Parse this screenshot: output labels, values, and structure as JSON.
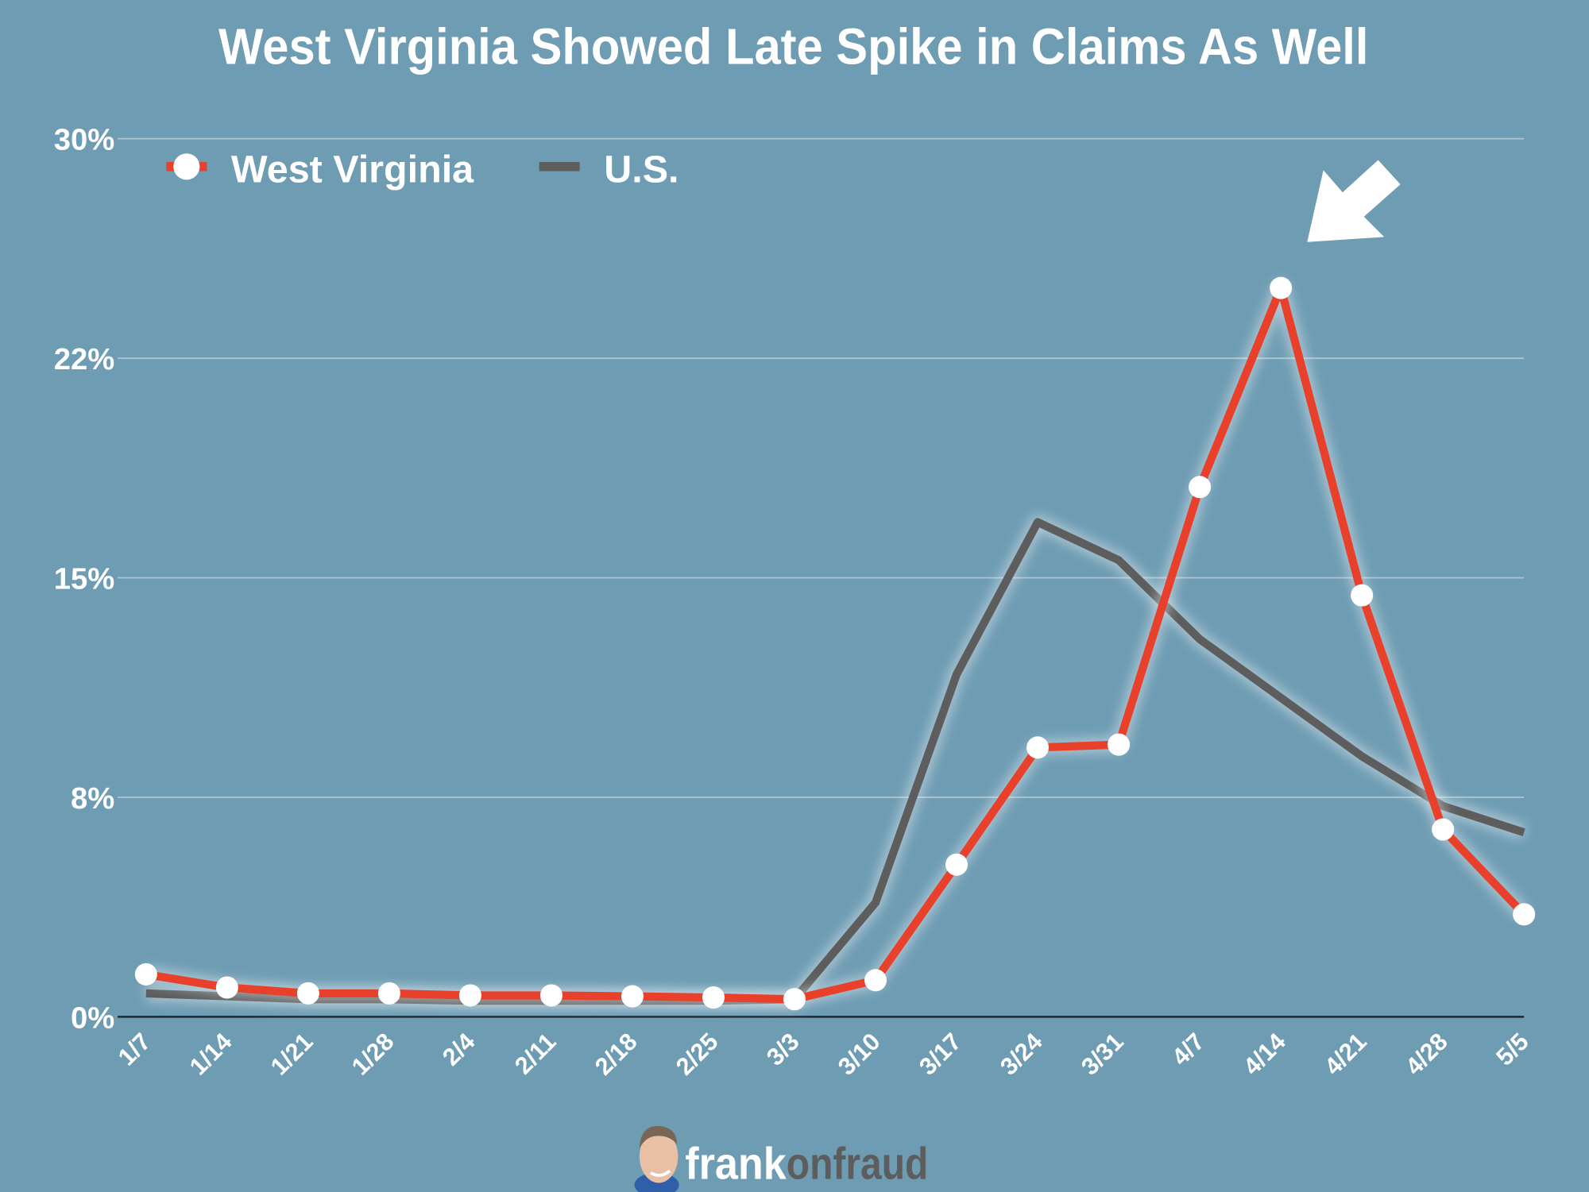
{
  "chart_data": {
    "type": "line",
    "title": "West Virginia Showed Late Spike in Claims As Well",
    "xlabel": "",
    "ylabel": "",
    "ylim": [
      0,
      30
    ],
    "y_ticks": [
      0,
      7.5,
      15,
      22.5,
      30
    ],
    "y_tick_labels": [
      "0%",
      "8%",
      "15%",
      "22%",
      "30%"
    ],
    "grid": true,
    "legend_position": "top-left",
    "categories": [
      "1/7",
      "1/14",
      "1/21",
      "1/28",
      "2/4",
      "2/11",
      "2/18",
      "2/25",
      "3/3",
      "3/10",
      "3/17",
      "3/24",
      "3/31",
      "4/7",
      "4/14",
      "4/21",
      "4/28",
      "5/5"
    ],
    "series": [
      {
        "name": "West Virginia",
        "color": "#e8402a",
        "markers": true,
        "values": [
          1.45,
          1.0,
          0.8,
          0.8,
          0.73,
          0.73,
          0.7,
          0.66,
          0.6,
          1.25,
          5.2,
          9.2,
          9.3,
          18.1,
          24.9,
          14.4,
          6.4,
          3.5
        ]
      },
      {
        "name": "U.S.",
        "color": "#5d5d5d",
        "markers": false,
        "values": [
          0.8,
          0.7,
          0.6,
          0.6,
          0.55,
          0.55,
          0.55,
          0.55,
          0.6,
          3.9,
          11.7,
          16.9,
          15.6,
          12.9,
          10.9,
          8.9,
          7.2,
          6.3
        ]
      }
    ]
  },
  "footer": {
    "logo_part1": "frank",
    "logo_part2": "onfraud"
  },
  "colors": {
    "background": "#6e9cb3",
    "grid": "#a9c3d0"
  }
}
